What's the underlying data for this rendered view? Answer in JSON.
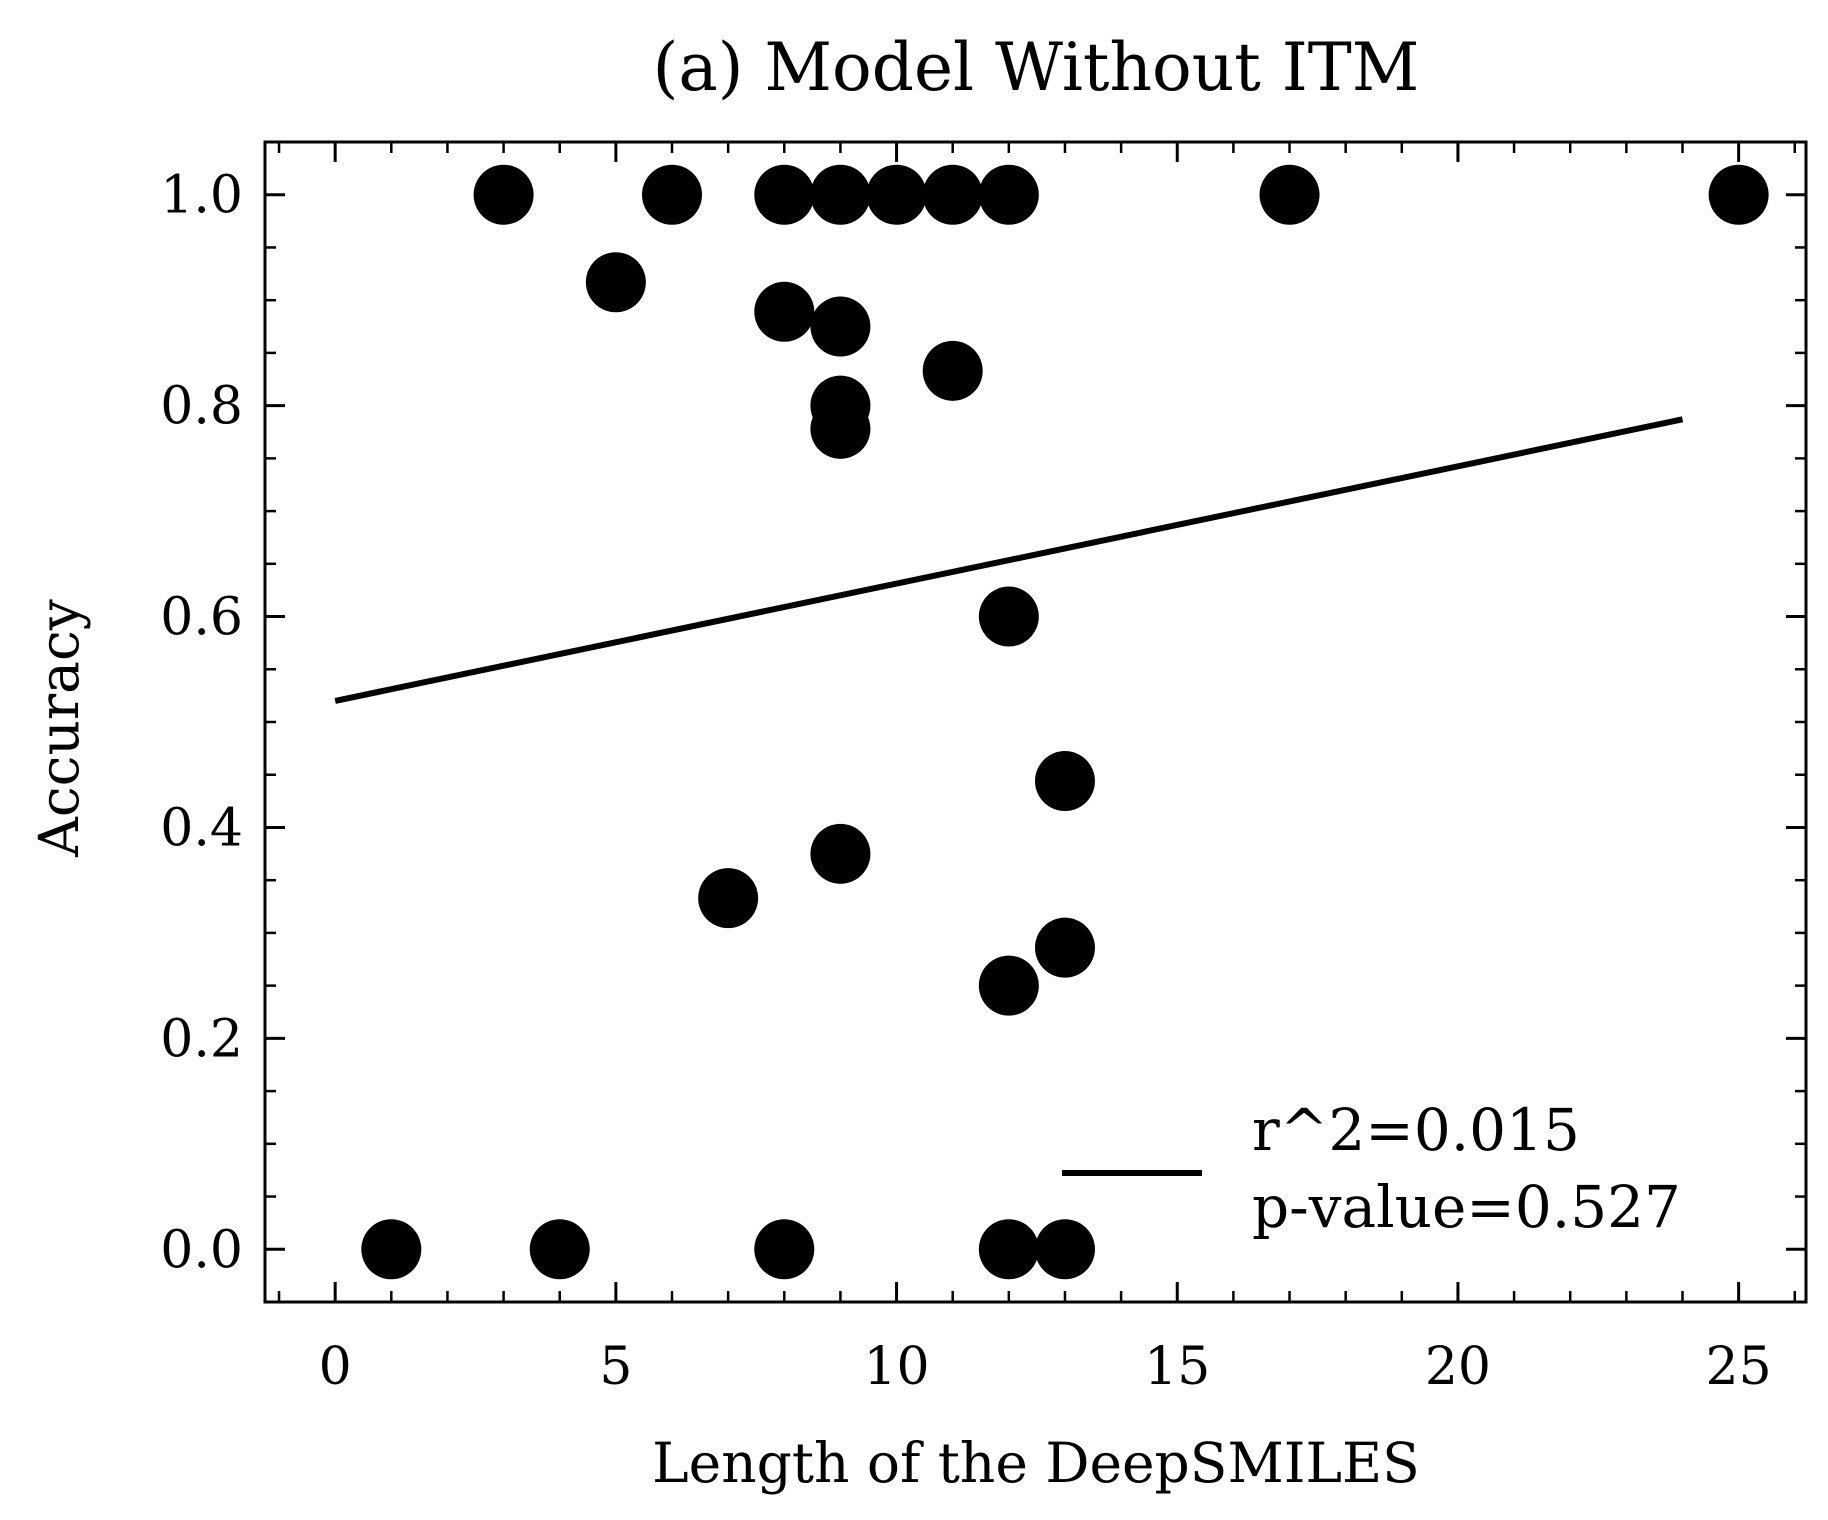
{
  "chart_data": {
    "type": "scatter",
    "title": "(a) Model Without ITM",
    "xlabel": "Length of the DeepSMILES",
    "ylabel": "Accuracy",
    "xlim": [
      -1.25,
      26.2
    ],
    "ylim": [
      -0.05,
      1.05
    ],
    "x_ticks": [
      0,
      5,
      10,
      15,
      20,
      25
    ],
    "x_tick_labels": [
      "0",
      "5",
      "10",
      "15",
      "20",
      "25"
    ],
    "y_ticks": [
      0.0,
      0.2,
      0.4,
      0.6,
      0.8,
      1.0
    ],
    "y_tick_labels": [
      "0.0",
      "0.2",
      "0.4",
      "0.6",
      "0.8",
      "1.0"
    ],
    "x_minor_step": 1,
    "y_minor_step": 0.05,
    "grid": false,
    "points": [
      {
        "x": 1,
        "y": 0.0
      },
      {
        "x": 3,
        "y": 1.0
      },
      {
        "x": 4,
        "y": 0.0
      },
      {
        "x": 5,
        "y": 0.917
      },
      {
        "x": 6,
        "y": 1.0
      },
      {
        "x": 7,
        "y": 0.333
      },
      {
        "x": 8,
        "y": 1.0
      },
      {
        "x": 8,
        "y": 0.889
      },
      {
        "x": 8,
        "y": 0.0
      },
      {
        "x": 9,
        "y": 1.0
      },
      {
        "x": 9,
        "y": 0.875
      },
      {
        "x": 9,
        "y": 0.8
      },
      {
        "x": 9,
        "y": 0.778
      },
      {
        "x": 9,
        "y": 0.375
      },
      {
        "x": 10,
        "y": 1.0
      },
      {
        "x": 11,
        "y": 1.0
      },
      {
        "x": 11,
        "y": 0.833
      },
      {
        "x": 12,
        "y": 1.0
      },
      {
        "x": 12,
        "y": 0.6
      },
      {
        "x": 12,
        "y": 0.25
      },
      {
        "x": 12,
        "y": 0.0
      },
      {
        "x": 13,
        "y": 0.444
      },
      {
        "x": 13,
        "y": 0.286
      },
      {
        "x": 13,
        "y": 0.0
      },
      {
        "x": 17,
        "y": 1.0
      },
      {
        "x": 25,
        "y": 1.0
      }
    ],
    "fit_line": {
      "x": [
        0,
        24
      ],
      "y": [
        0.52,
        0.787
      ]
    },
    "legend": {
      "position": "lower-right",
      "lines": [
        "r^2=0.015",
        "p-value=0.527"
      ]
    },
    "colors": {
      "points": "#000000",
      "line": "#000000",
      "axes": "#000000"
    }
  }
}
